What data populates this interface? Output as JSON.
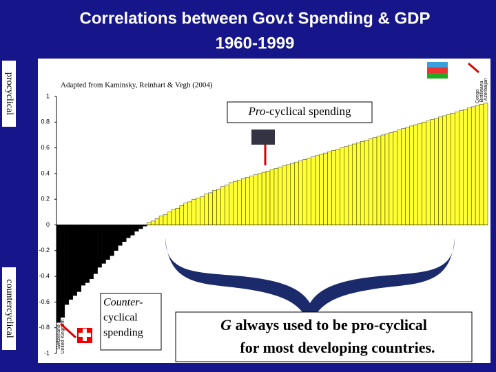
{
  "chart_data": {
    "type": "bar",
    "title": "Correlations between Gov.t Spending & GDP",
    "subtitle": "1960-1999",
    "source": "Adapted from Kaminsky, Reinhart & Vegh (2004)",
    "side_labels": {
      "top": "procyclical",
      "bottom": "countercyclical"
    },
    "annotations": {
      "pro": {
        "italic": "Pro",
        "rest": "-cyclical spending"
      },
      "counter": {
        "italic": "Counter-",
        "line2": "cyclical",
        "line3": "spending"
      },
      "developing": {
        "italic": "G",
        "rest": " always used to be pro-cyclical",
        "line2": "for most developing countries."
      }
    },
    "color": "#ffff33",
    "negative_color": "#000000",
    "ylim": [
      -1,
      1
    ],
    "yticks": [
      1,
      0.8,
      0.6,
      0.4,
      0.2,
      0,
      -0.2,
      -0.4,
      -0.6,
      -0.8,
      -1
    ],
    "categories": [
      "Switzerland",
      "United Kingdom",
      null,
      null,
      null,
      null,
      null,
      null,
      null,
      null,
      null,
      null,
      null,
      null,
      null,
      null,
      null,
      null,
      null,
      null,
      null,
      null,
      null,
      null,
      null,
      null,
      null,
      null,
      null,
      null,
      null,
      null,
      null,
      null,
      null,
      null,
      null,
      null,
      null,
      null,
      null,
      null,
      null,
      null,
      null,
      null,
      null,
      null,
      null,
      null,
      null,
      null,
      null,
      null,
      null,
      null,
      null,
      null,
      null,
      null,
      null,
      null,
      null,
      null,
      null,
      null,
      null,
      null,
      null,
      null,
      null,
      null,
      null,
      null,
      null,
      null,
      null,
      null,
      null,
      null,
      null,
      null,
      null,
      null,
      null,
      null,
      null,
      null,
      null,
      null,
      null,
      null,
      null,
      null,
      null,
      null,
      null,
      null,
      null,
      null,
      null,
      null,
      "Congo",
      "Botswana",
      "Azerbaijan"
    ],
    "values": [
      -0.76,
      -0.72,
      -0.62,
      -0.58,
      -0.55,
      -0.52,
      -0.47,
      -0.45,
      -0.42,
      -0.38,
      -0.33,
      -0.3,
      -0.27,
      -0.24,
      -0.2,
      -0.16,
      -0.13,
      -0.1,
      -0.08,
      -0.05,
      -0.03,
      -0.01,
      0.02,
      0.03,
      0.05,
      0.07,
      0.08,
      0.1,
      0.12,
      0.13,
      0.15,
      0.17,
      0.18,
      0.2,
      0.21,
      0.22,
      0.24,
      0.25,
      0.27,
      0.28,
      0.3,
      0.31,
      0.33,
      0.34,
      0.35,
      0.36,
      0.37,
      0.38,
      0.39,
      0.4,
      0.41,
      0.42,
      0.43,
      0.44,
      0.45,
      0.46,
      0.47,
      0.48,
      0.49,
      0.5,
      0.51,
      0.52,
      0.53,
      0.54,
      0.55,
      0.56,
      0.57,
      0.58,
      0.59,
      0.6,
      0.61,
      0.62,
      0.63,
      0.64,
      0.65,
      0.66,
      0.67,
      0.68,
      0.69,
      0.7,
      0.71,
      0.72,
      0.73,
      0.74,
      0.75,
      0.76,
      0.77,
      0.78,
      0.79,
      0.8,
      0.81,
      0.82,
      0.83,
      0.84,
      0.85,
      0.86,
      0.87,
      0.88,
      0.89,
      0.9,
      0.91,
      0.92,
      0.93,
      0.94,
      0.95
    ]
  }
}
